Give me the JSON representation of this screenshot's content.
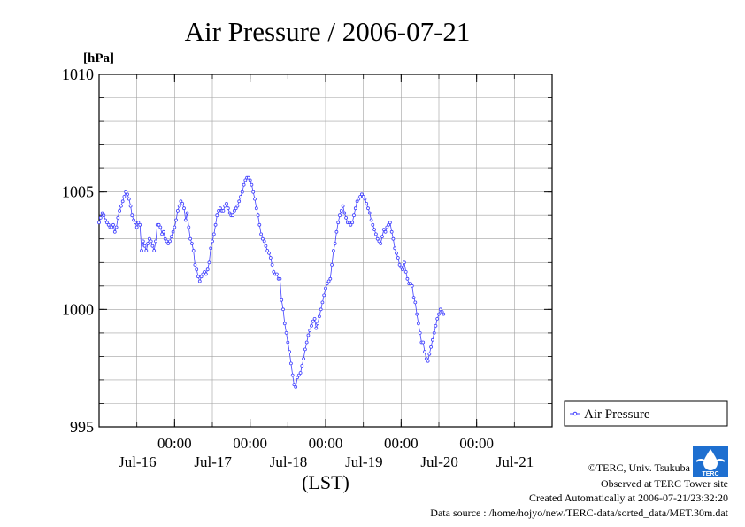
{
  "chart_data": {
    "type": "line",
    "title": "Air Pressure / 2006-07-21",
    "ylabel": "[hPa]",
    "xlabel": "(LST)",
    "ylim": [
      995,
      1010
    ],
    "xlim": [
      0,
      144
    ],
    "yticks": [
      995,
      1000,
      1005,
      1010
    ],
    "yticklabels": [
      "995",
      "1000",
      "1005",
      "1010"
    ],
    "y_minor_step": 1,
    "xticks": [
      {
        "x": 24,
        "time": "00:00",
        "date": "Jul-16"
      },
      {
        "x": 48,
        "time": "00:00",
        "date": "Jul-17"
      },
      {
        "x": 72,
        "time": "00:00",
        "date": "Jul-18"
      },
      {
        "x": 96,
        "time": "00:00",
        "date": "Jul-19"
      },
      {
        "x": 120,
        "time": "00:00",
        "date": "Jul-20"
      },
      {
        "x": 144,
        "time": "",
        "date": "Jul-21"
      }
    ],
    "x_minor_step": 12,
    "grid": true,
    "legend_position": "bottom-right",
    "series": [
      {
        "name": "Air Pressure",
        "color": "#4040ff",
        "points": [
          [
            0,
            1003.7
          ],
          [
            0.5,
            1003.9
          ],
          [
            1,
            1004.1
          ],
          [
            1.5,
            1004.0
          ],
          [
            2,
            1003.8
          ],
          [
            2.5,
            1003.7
          ],
          [
            3,
            1003.6
          ],
          [
            3.5,
            1003.5
          ],
          [
            4,
            1003.5
          ],
          [
            4.5,
            1003.6
          ],
          [
            5,
            1003.3
          ],
          [
            5.5,
            1003.5
          ],
          [
            6,
            1003.9
          ],
          [
            6.5,
            1004.2
          ],
          [
            7,
            1004.4
          ],
          [
            7.5,
            1004.6
          ],
          [
            8,
            1004.8
          ],
          [
            8.5,
            1005.0
          ],
          [
            9,
            1004.9
          ],
          [
            9.5,
            1004.7
          ],
          [
            10,
            1004.4
          ],
          [
            10.5,
            1004.0
          ],
          [
            11,
            1003.8
          ],
          [
            11.5,
            1003.7
          ],
          [
            12,
            1003.5
          ],
          [
            12.5,
            1003.7
          ],
          [
            13,
            1003.6
          ],
          [
            13.5,
            1002.5
          ],
          [
            14,
            1002.9
          ],
          [
            14.5,
            1002.7
          ],
          [
            15,
            1002.5
          ],
          [
            15.5,
            1002.8
          ],
          [
            16,
            1003.0
          ],
          [
            16.5,
            1002.9
          ],
          [
            17,
            1002.7
          ],
          [
            17.5,
            1002.5
          ],
          [
            18,
            1002.9
          ],
          [
            18.5,
            1003.6
          ],
          [
            19,
            1003.6
          ],
          [
            19.5,
            1003.5
          ],
          [
            20,
            1003.2
          ],
          [
            20.5,
            1003.3
          ],
          [
            21,
            1003.0
          ],
          [
            21.5,
            1002.9
          ],
          [
            22,
            1002.8
          ],
          [
            22.5,
            1002.9
          ],
          [
            23,
            1003.1
          ],
          [
            23.5,
            1003.3
          ],
          [
            24,
            1003.5
          ],
          [
            24.5,
            1003.8
          ],
          [
            25,
            1004.2
          ],
          [
            25.5,
            1004.4
          ],
          [
            26,
            1004.6
          ],
          [
            26.5,
            1004.5
          ],
          [
            27,
            1004.3
          ],
          [
            27.5,
            1003.8
          ],
          [
            28,
            1004.1
          ],
          [
            28.5,
            1003.5
          ],
          [
            29,
            1003.0
          ],
          [
            29.5,
            1002.8
          ],
          [
            30,
            1002.5
          ],
          [
            30.5,
            1001.9
          ],
          [
            31,
            1001.7
          ],
          [
            31.5,
            1001.4
          ],
          [
            32,
            1001.2
          ],
          [
            32.5,
            1001.4
          ],
          [
            33,
            1001.5
          ],
          [
            33.5,
            1001.6
          ],
          [
            34,
            1001.5
          ],
          [
            34.5,
            1001.7
          ],
          [
            35,
            1002.0
          ],
          [
            35.5,
            1002.6
          ],
          [
            36,
            1002.9
          ],
          [
            36.5,
            1003.2
          ],
          [
            37,
            1003.6
          ],
          [
            37.5,
            1004.0
          ],
          [
            38,
            1004.2
          ],
          [
            38.5,
            1004.3
          ],
          [
            39,
            1004.2
          ],
          [
            39.5,
            1004.2
          ],
          [
            40,
            1004.4
          ],
          [
            40.5,
            1004.5
          ],
          [
            41,
            1004.3
          ],
          [
            41.5,
            1004.1
          ],
          [
            42,
            1004.0
          ],
          [
            42.5,
            1004.0
          ],
          [
            43,
            1004.2
          ],
          [
            43.5,
            1004.3
          ],
          [
            44,
            1004.4
          ],
          [
            44.5,
            1004.6
          ],
          [
            45,
            1004.8
          ],
          [
            45.5,
            1005.0
          ],
          [
            46,
            1005.3
          ],
          [
            46.5,
            1005.5
          ],
          [
            47,
            1005.6
          ],
          [
            47.5,
            1005.6
          ],
          [
            48,
            1005.5
          ],
          [
            48.5,
            1005.3
          ],
          [
            49,
            1005.0
          ],
          [
            49.5,
            1004.7
          ],
          [
            50,
            1004.3
          ],
          [
            50.5,
            1004.0
          ],
          [
            51,
            1003.6
          ],
          [
            51.5,
            1003.2
          ],
          [
            52,
            1003.0
          ],
          [
            52.5,
            1002.9
          ],
          [
            53,
            1002.7
          ],
          [
            53.5,
            1002.5
          ],
          [
            54,
            1002.4
          ],
          [
            54.5,
            1002.2
          ],
          [
            55,
            1001.9
          ],
          [
            55.5,
            1001.6
          ],
          [
            56,
            1001.5
          ],
          [
            56.5,
            1001.5
          ],
          [
            57,
            1001.3
          ],
          [
            57.5,
            1001.3
          ],
          [
            58,
            1000.4
          ],
          [
            58.5,
            1000.0
          ],
          [
            59,
            999.4
          ],
          [
            59.5,
            999.0
          ],
          [
            60,
            998.6
          ],
          [
            60.5,
            998.2
          ],
          [
            61,
            997.7
          ],
          [
            61.5,
            997.2
          ],
          [
            62,
            996.8
          ],
          [
            62.5,
            996.7
          ],
          [
            63,
            997.1
          ],
          [
            63.5,
            997.2
          ],
          [
            64,
            997.3
          ],
          [
            64.5,
            997.6
          ],
          [
            65,
            997.9
          ],
          [
            65.5,
            998.3
          ],
          [
            66,
            998.6
          ],
          [
            66.5,
            998.9
          ],
          [
            67,
            999.1
          ],
          [
            67.5,
            999.3
          ],
          [
            68,
            999.5
          ],
          [
            68.5,
            999.6
          ],
          [
            69,
            999.2
          ],
          [
            69.5,
            999.4
          ],
          [
            70,
            999.7
          ],
          [
            70.5,
            1000.0
          ],
          [
            71,
            1000.3
          ],
          [
            71.5,
            1000.6
          ],
          [
            72,
            1000.9
          ],
          [
            72.5,
            1001.1
          ],
          [
            73,
            1001.2
          ],
          [
            73.5,
            1001.3
          ],
          [
            74,
            1001.9
          ],
          [
            74.5,
            1002.5
          ],
          [
            75,
            1002.8
          ],
          [
            75.5,
            1003.3
          ],
          [
            76,
            1003.7
          ],
          [
            76.5,
            1004.0
          ],
          [
            77,
            1004.2
          ],
          [
            77.5,
            1004.4
          ],
          [
            78,
            1004.1
          ],
          [
            78.5,
            1003.9
          ],
          [
            79,
            1003.7
          ],
          [
            79.5,
            1003.7
          ],
          [
            80,
            1003.6
          ],
          [
            80.5,
            1003.7
          ],
          [
            81,
            1004.0
          ],
          [
            81.5,
            1004.3
          ],
          [
            82,
            1004.6
          ],
          [
            82.5,
            1004.7
          ],
          [
            83,
            1004.8
          ],
          [
            83.5,
            1004.9
          ],
          [
            84,
            1004.8
          ],
          [
            84.5,
            1004.7
          ],
          [
            85,
            1004.5
          ],
          [
            85.5,
            1004.3
          ],
          [
            86,
            1004.1
          ],
          [
            86.5,
            1003.8
          ],
          [
            87,
            1003.6
          ],
          [
            87.5,
            1003.4
          ],
          [
            88,
            1003.2
          ],
          [
            88.5,
            1003.0
          ],
          [
            89,
            1002.9
          ],
          [
            89.5,
            1002.8
          ],
          [
            90,
            1003.1
          ],
          [
            90.5,
            1003.4
          ],
          [
            91,
            1003.3
          ],
          [
            91.5,
            1003.5
          ],
          [
            92,
            1003.6
          ],
          [
            92.5,
            1003.7
          ],
          [
            93,
            1003.3
          ],
          [
            93.5,
            1003.0
          ],
          [
            94,
            1002.6
          ],
          [
            94.5,
            1002.4
          ],
          [
            95,
            1002.2
          ],
          [
            95.5,
            1001.9
          ],
          [
            96,
            1001.8
          ],
          [
            96.5,
            1001.7
          ],
          [
            97,
            1002.0
          ],
          [
            97.5,
            1001.6
          ],
          [
            98,
            1001.3
          ],
          [
            98.5,
            1001.1
          ],
          [
            99,
            1001.1
          ],
          [
            99.5,
            1001.0
          ],
          [
            100,
            1000.5
          ],
          [
            100.5,
            1000.3
          ],
          [
            101,
            999.8
          ],
          [
            101.5,
            999.4
          ],
          [
            102,
            999.0
          ],
          [
            102.5,
            998.6
          ],
          [
            103,
            998.6
          ],
          [
            103.5,
            998.2
          ],
          [
            104,
            997.9
          ],
          [
            104.5,
            997.8
          ],
          [
            105,
            998.1
          ],
          [
            105.5,
            998.4
          ],
          [
            106,
            998.7
          ],
          [
            106.5,
            999.0
          ],
          [
            107,
            999.3
          ],
          [
            107.5,
            999.6
          ],
          [
            108,
            999.8
          ],
          [
            108.5,
            1000.0
          ],
          [
            109,
            999.9
          ],
          [
            109.5,
            999.8
          ]
        ]
      }
    ]
  },
  "legend": {
    "label": "Air Pressure"
  },
  "logo": {
    "text": "TERC"
  },
  "footer": {
    "copyright": "©TERC, Univ. Tsukuba",
    "observed": "Observed at TERC Tower site",
    "created": "Created Automatically at 2006-07-21/23:32:20",
    "source": "Data source : /home/hojyo/new/TERC-data/sorted_data/MET.30m.dat"
  }
}
